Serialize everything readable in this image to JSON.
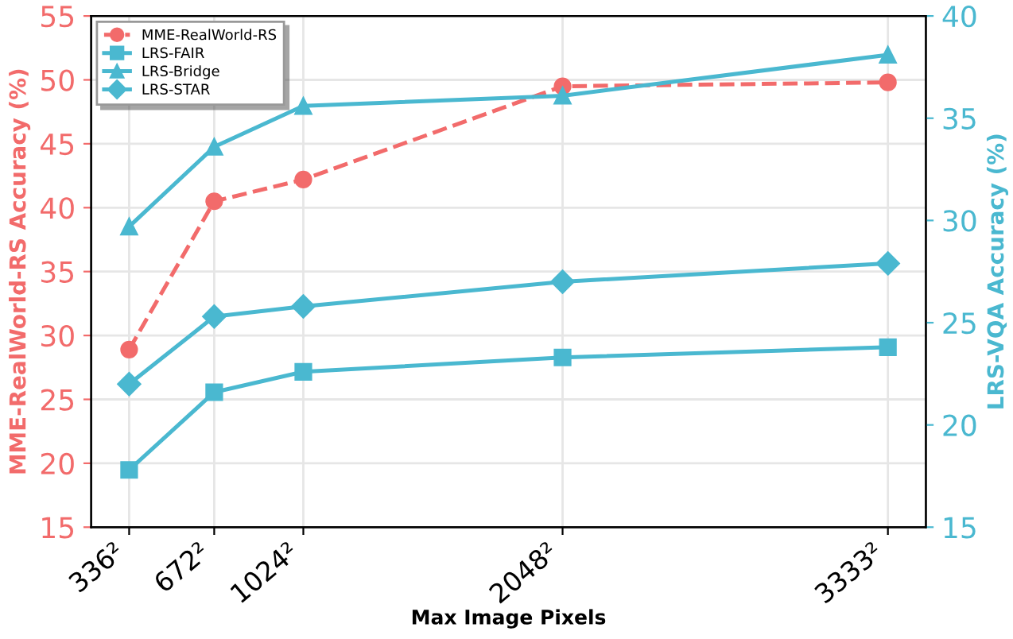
{
  "chart_data": {
    "type": "line",
    "x": [
      336,
      672,
      1024,
      2048,
      3333
    ],
    "xlim": [
      186,
      3483
    ],
    "xticks": [
      {
        "value": 336,
        "label": "336²"
      },
      {
        "value": 672,
        "label": "672²"
      },
      {
        "value": 1024,
        "label": "1024²"
      },
      {
        "value": 2048,
        "label": "2048²"
      },
      {
        "value": 3333,
        "label": "3333²"
      }
    ],
    "xlabel": "Max Image Pixels",
    "ylabel": "MME-RealWorld-RS Accuracy (%)",
    "y2label": "LRS-VQA Accuracy (%)",
    "ylim": [
      15,
      55
    ],
    "yticks": [
      15,
      20,
      25,
      30,
      35,
      40,
      45,
      50,
      55
    ],
    "y2lim": [
      15,
      40
    ],
    "y2ticks": [
      15,
      20,
      25,
      30,
      35,
      40
    ],
    "grid": true,
    "legend": "top left",
    "series": [
      {
        "name": "MME-RealWorld-RS",
        "color": "#f26b6b",
        "marker": "circle",
        "line_style": "dashed",
        "values": [
          28.9,
          40.5,
          42.2,
          49.5,
          49.8
        ]
      },
      {
        "name": "LRS-FAIR",
        "color": "#4ab8d0",
        "marker": "square",
        "line_style": "solid",
        "axis": "y2",
        "values": [
          17.8,
          21.6,
          22.6,
          23.3,
          23.8
        ]
      },
      {
        "name": "LRS-Bridge",
        "color": "#4ab8d0",
        "marker": "triangle",
        "line_style": "solid",
        "axis": "y2",
        "values": [
          29.7,
          33.6,
          35.6,
          36.1,
          38.1
        ]
      },
      {
        "name": "LRS-STAR",
        "color": "#4ab8d0",
        "marker": "diamond",
        "line_style": "solid",
        "axis": "y2",
        "values": [
          22.0,
          25.3,
          25.8,
          27.0,
          27.9
        ]
      }
    ]
  }
}
